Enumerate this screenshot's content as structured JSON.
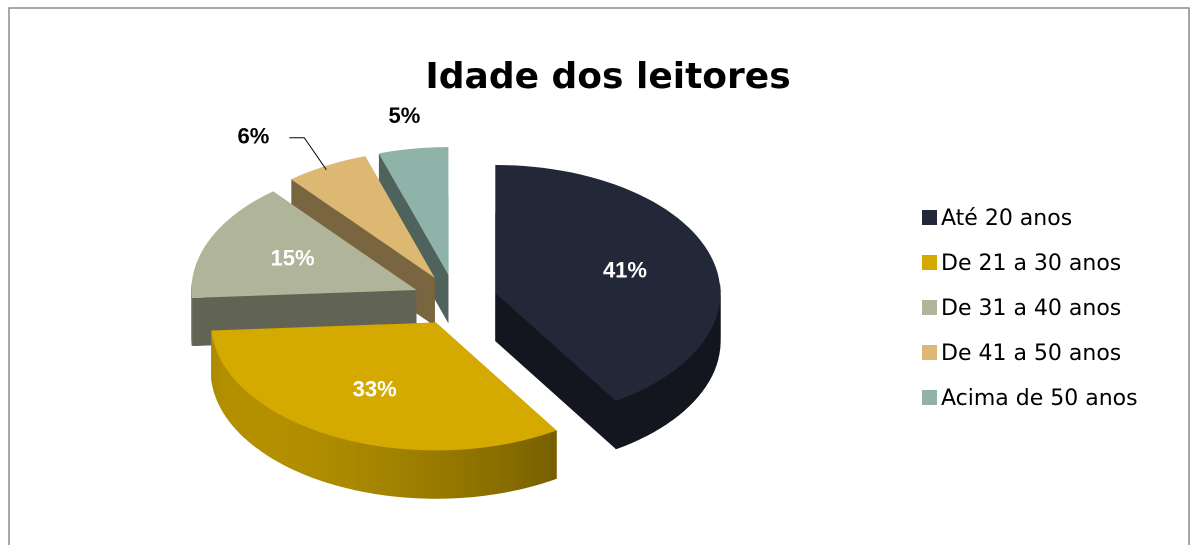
{
  "chart_data": {
    "type": "pie3d",
    "title": "Idade dos leitores",
    "categories": [
      "Até 20 anos",
      "De 21 a 30 anos",
      "De 31 a 40 anos",
      "De 41 a 50 anos",
      "Acima de 50 anos"
    ],
    "values": [
      41,
      33,
      15,
      6,
      5
    ],
    "value_labels": [
      "41%",
      "33%",
      "15%",
      "6%",
      "5%"
    ],
    "colors": [
      "#222838",
      "#d4aa00",
      "#b0b59a",
      "#dcb872",
      "#8fb3a8"
    ],
    "legend": "right"
  }
}
